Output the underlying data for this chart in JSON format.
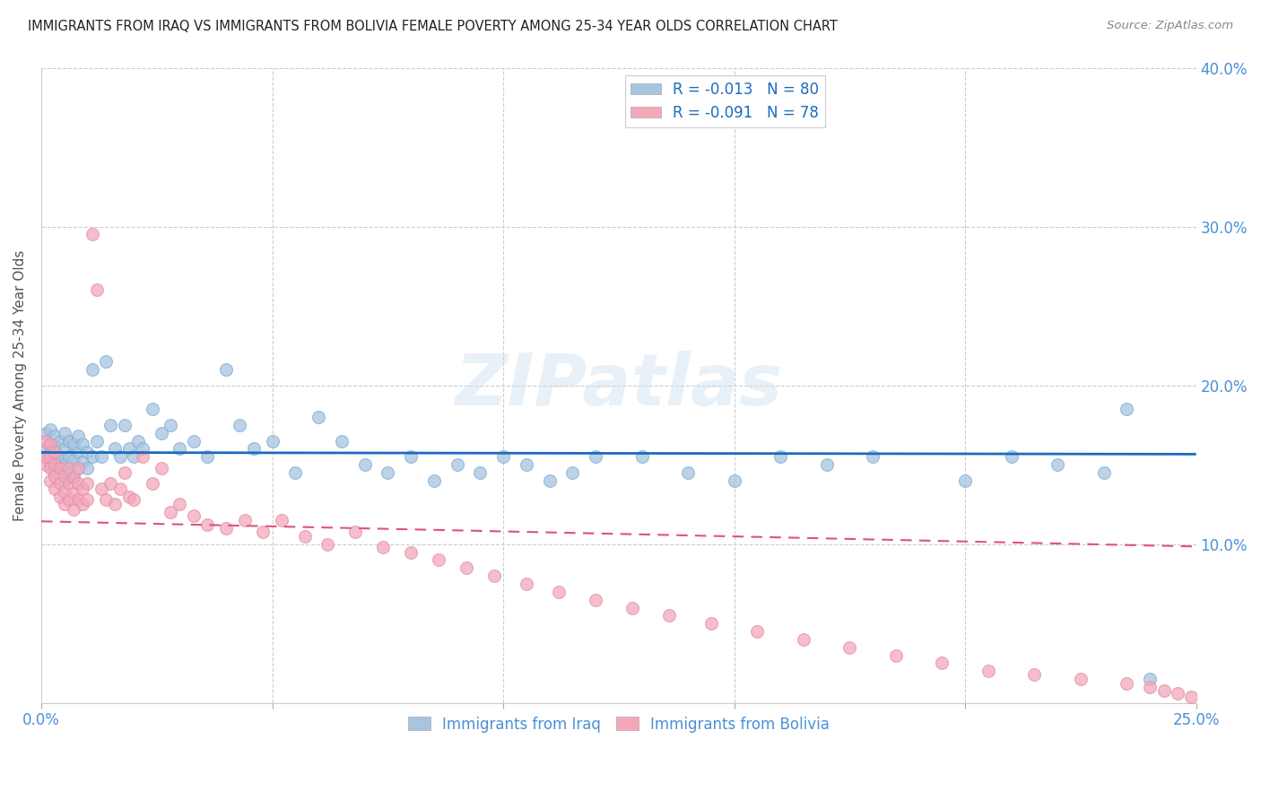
{
  "title": "IMMIGRANTS FROM IRAQ VS IMMIGRANTS FROM BOLIVIA FEMALE POVERTY AMONG 25-34 YEAR OLDS CORRELATION CHART",
  "source": "Source: ZipAtlas.com",
  "ylabel": "Female Poverty Among 25-34 Year Olds",
  "xlim": [
    0,
    0.25
  ],
  "ylim": [
    0,
    0.4
  ],
  "xticks": [
    0.0,
    0.05,
    0.1,
    0.15,
    0.2,
    0.25
  ],
  "xticklabels": [
    "0.0%",
    "",
    "",
    "",
    "",
    "25.0%"
  ],
  "yticks": [
    0.0,
    0.1,
    0.2,
    0.3,
    0.4
  ],
  "yticklabels_left": [
    "",
    "",
    "",
    "",
    ""
  ],
  "yticklabels_right": [
    "",
    "10.0%",
    "20.0%",
    "30.0%",
    "40.0%"
  ],
  "watermark": "ZIPatlas",
  "iraq_color": "#a8c4e0",
  "bolivia_color": "#f4a7b9",
  "iraq_line_color": "#1a6bbf",
  "bolivia_line_color": "#e05080",
  "iraq_R": -0.013,
  "iraq_N": 80,
  "bolivia_R": -0.091,
  "bolivia_N": 78,
  "legend_iraq_label": "R = -0.013   N = 80",
  "legend_bolivia_label": "R = -0.091   N = 78",
  "iraq_x": [
    0.001,
    0.001,
    0.001,
    0.002,
    0.002,
    0.002,
    0.002,
    0.003,
    0.003,
    0.003,
    0.003,
    0.004,
    0.004,
    0.004,
    0.005,
    0.005,
    0.005,
    0.005,
    0.006,
    0.006,
    0.006,
    0.007,
    0.007,
    0.007,
    0.008,
    0.008,
    0.008,
    0.009,
    0.009,
    0.01,
    0.01,
    0.011,
    0.011,
    0.012,
    0.013,
    0.014,
    0.015,
    0.016,
    0.017,
    0.018,
    0.019,
    0.02,
    0.021,
    0.022,
    0.024,
    0.026,
    0.028,
    0.03,
    0.033,
    0.036,
    0.04,
    0.043,
    0.046,
    0.05,
    0.055,
    0.06,
    0.065,
    0.07,
    0.075,
    0.08,
    0.085,
    0.09,
    0.095,
    0.1,
    0.105,
    0.11,
    0.115,
    0.12,
    0.13,
    0.14,
    0.15,
    0.16,
    0.17,
    0.18,
    0.2,
    0.21,
    0.22,
    0.23,
    0.235,
    0.24
  ],
  "iraq_y": [
    0.155,
    0.16,
    0.17,
    0.15,
    0.158,
    0.163,
    0.172,
    0.145,
    0.155,
    0.162,
    0.168,
    0.148,
    0.155,
    0.165,
    0.14,
    0.15,
    0.16,
    0.17,
    0.145,
    0.155,
    0.165,
    0.142,
    0.153,
    0.163,
    0.148,
    0.158,
    0.168,
    0.152,
    0.163,
    0.148,
    0.158,
    0.21,
    0.155,
    0.165,
    0.155,
    0.215,
    0.175,
    0.16,
    0.155,
    0.175,
    0.16,
    0.155,
    0.165,
    0.16,
    0.185,
    0.17,
    0.175,
    0.16,
    0.165,
    0.155,
    0.21,
    0.175,
    0.16,
    0.165,
    0.145,
    0.18,
    0.165,
    0.15,
    0.145,
    0.155,
    0.14,
    0.15,
    0.145,
    0.155,
    0.15,
    0.14,
    0.145,
    0.155,
    0.155,
    0.145,
    0.14,
    0.155,
    0.15,
    0.155,
    0.14,
    0.155,
    0.15,
    0.145,
    0.185,
    0.015
  ],
  "bolivia_x": [
    0.001,
    0.001,
    0.001,
    0.002,
    0.002,
    0.002,
    0.002,
    0.003,
    0.003,
    0.003,
    0.003,
    0.004,
    0.004,
    0.004,
    0.005,
    0.005,
    0.005,
    0.006,
    0.006,
    0.006,
    0.007,
    0.007,
    0.007,
    0.008,
    0.008,
    0.008,
    0.009,
    0.009,
    0.01,
    0.01,
    0.011,
    0.012,
    0.013,
    0.014,
    0.015,
    0.016,
    0.017,
    0.018,
    0.019,
    0.02,
    0.022,
    0.024,
    0.026,
    0.028,
    0.03,
    0.033,
    0.036,
    0.04,
    0.044,
    0.048,
    0.052,
    0.057,
    0.062,
    0.068,
    0.074,
    0.08,
    0.086,
    0.092,
    0.098,
    0.105,
    0.112,
    0.12,
    0.128,
    0.136,
    0.145,
    0.155,
    0.165,
    0.175,
    0.185,
    0.195,
    0.205,
    0.215,
    0.225,
    0.235,
    0.24,
    0.243,
    0.246,
    0.249
  ],
  "bolivia_y": [
    0.15,
    0.155,
    0.165,
    0.14,
    0.148,
    0.155,
    0.163,
    0.135,
    0.143,
    0.15,
    0.158,
    0.13,
    0.138,
    0.148,
    0.125,
    0.133,
    0.143,
    0.128,
    0.138,
    0.148,
    0.122,
    0.132,
    0.142,
    0.128,
    0.138,
    0.148,
    0.125,
    0.135,
    0.128,
    0.138,
    0.295,
    0.26,
    0.135,
    0.128,
    0.138,
    0.125,
    0.135,
    0.145,
    0.13,
    0.128,
    0.155,
    0.138,
    0.148,
    0.12,
    0.125,
    0.118,
    0.112,
    0.11,
    0.115,
    0.108,
    0.115,
    0.105,
    0.1,
    0.108,
    0.098,
    0.095,
    0.09,
    0.085,
    0.08,
    0.075,
    0.07,
    0.065,
    0.06,
    0.055,
    0.05,
    0.045,
    0.04,
    0.035,
    0.03,
    0.025,
    0.02,
    0.018,
    0.015,
    0.012,
    0.01,
    0.008,
    0.006,
    0.004
  ]
}
